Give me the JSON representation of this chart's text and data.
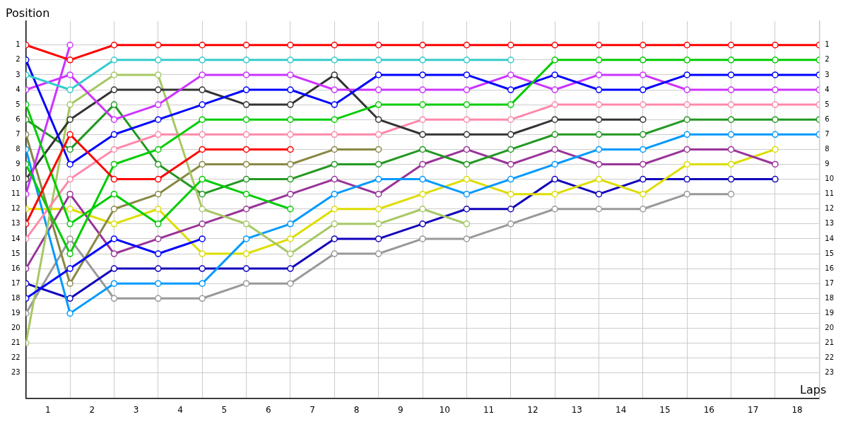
{
  "chart_data": {
    "type": "line",
    "xlabel": "Laps",
    "ylabel": "Position",
    "x": [
      0,
      1,
      2,
      3,
      4,
      5,
      6,
      7,
      8,
      9,
      10,
      11,
      12,
      13,
      14,
      15,
      16,
      17,
      18
    ],
    "xlim": [
      0,
      18
    ],
    "xticks": [
      {
        "value": 0,
        "label": null
      },
      {
        "value": 0.5,
        "label": "1"
      },
      {
        "value": 1,
        "label": null
      },
      {
        "value": 1.5,
        "label": "2"
      },
      {
        "value": 2,
        "label": null
      },
      {
        "value": 2.5,
        "label": "3"
      },
      {
        "value": 3,
        "label": null
      },
      {
        "value": 3.5,
        "label": "4"
      },
      {
        "value": 4,
        "label": null
      },
      {
        "value": 4.5,
        "label": "5"
      },
      {
        "value": 5,
        "label": null
      },
      {
        "value": 5.5,
        "label": "6"
      },
      {
        "value": 6,
        "label": null
      },
      {
        "value": 6.5,
        "label": "7"
      },
      {
        "value": 7,
        "label": null
      },
      {
        "value": 7.5,
        "label": "8"
      },
      {
        "value": 8,
        "label": null
      },
      {
        "value": 8.5,
        "label": "9"
      },
      {
        "value": 9,
        "label": null
      },
      {
        "value": 9.5,
        "label": "10"
      },
      {
        "value": 10,
        "label": null
      },
      {
        "value": 10.5,
        "label": "11"
      },
      {
        "value": 11,
        "label": null
      },
      {
        "value": 11.5,
        "label": "12"
      },
      {
        "value": 12,
        "label": null
      },
      {
        "value": 12.5,
        "label": "13"
      },
      {
        "value": 13,
        "label": null
      },
      {
        "value": 13.5,
        "label": "14"
      },
      {
        "value": 14,
        "label": null
      },
      {
        "value": 14.5,
        "label": "15"
      },
      {
        "value": 15,
        "label": null
      },
      {
        "value": 15.5,
        "label": "16"
      },
      {
        "value": 16,
        "label": null
      },
      {
        "value": 16.5,
        "label": "17"
      },
      {
        "value": 17,
        "label": null
      },
      {
        "value": 17.5,
        "label": "18"
      },
      {
        "value": 18,
        "label": null
      }
    ],
    "ylim": [
      24.7,
      -0.6
    ],
    "yticks": [
      1,
      2,
      3,
      4,
      5,
      6,
      7,
      8,
      9,
      10,
      11,
      12,
      13,
      14,
      15,
      16,
      17,
      18,
      19,
      20,
      21,
      22,
      23
    ],
    "y2lim": [
      24.7,
      -0.6
    ],
    "y2ticks": [
      1,
      2,
      3,
      4,
      5,
      6,
      7,
      8,
      9,
      10,
      11,
      12,
      13,
      14,
      15,
      16,
      17,
      18,
      19,
      20,
      21,
      22,
      23
    ],
    "grid": true,
    "legend": false,
    "marker": "circle",
    "line_style": "solid",
    "series": [
      {
        "color": "#ff0000",
        "values": [
          1,
          2,
          1,
          1,
          1,
          1,
          1,
          1,
          1,
          1,
          1,
          1,
          1,
          1,
          1,
          1,
          1,
          1,
          1
        ]
      },
      {
        "color": "#ff0000",
        "values": [
          13,
          7,
          10,
          10,
          8,
          8,
          8,
          null,
          null,
          null,
          null,
          null,
          null,
          null,
          null,
          null,
          null,
          null,
          null
        ]
      },
      {
        "color": "#33cccc",
        "values": [
          3,
          4,
          2,
          2,
          2,
          2,
          2,
          2,
          2,
          2,
          2,
          2,
          null,
          null,
          null,
          null,
          null,
          null,
          null
        ]
      },
      {
        "color": "#00cc00",
        "values": [
          5,
          13,
          11,
          13,
          10,
          11,
          12,
          null,
          null,
          null,
          null,
          null,
          null,
          null,
          null,
          null,
          null,
          null,
          null
        ]
      },
      {
        "color": "#00cc00",
        "values": [
          9,
          15,
          9,
          8,
          6,
          6,
          6,
          6,
          5,
          5,
          5,
          5,
          2,
          2,
          2,
          2,
          2,
          2,
          2
        ]
      },
      {
        "color": "#0000ff",
        "values": [
          2,
          9,
          7,
          6,
          5,
          4,
          4,
          5,
          3,
          3,
          3,
          4,
          3,
          4,
          4,
          3,
          3,
          3,
          3
        ]
      },
      {
        "color": "#0000ff",
        "values": [
          18,
          16,
          14,
          15,
          14,
          null,
          null,
          null,
          null,
          null,
          null,
          null,
          null,
          null,
          null,
          null,
          null,
          null,
          null
        ]
      },
      {
        "color": "#cc33ff",
        "values": [
          4,
          3,
          6,
          5,
          3,
          3,
          3,
          4,
          4,
          4,
          4,
          3,
          4,
          3,
          3,
          4,
          4,
          4,
          4
        ]
      },
      {
        "color": "#cc33ff",
        "values": [
          11,
          1,
          null,
          null,
          null,
          null,
          null,
          null,
          null,
          null,
          null,
          null,
          null,
          null,
          null,
          null,
          null,
          null,
          null
        ]
      },
      {
        "color": "#333333",
        "values": [
          10,
          6,
          4,
          4,
          4,
          5,
          5,
          3,
          6,
          7,
          7,
          7,
          6,
          6,
          6,
          null,
          null,
          null,
          null
        ]
      },
      {
        "color": "#ff88aa",
        "values": [
          14,
          10,
          8,
          7,
          7,
          7,
          7,
          7,
          7,
          6,
          6,
          6,
          5,
          5,
          5,
          5,
          5,
          5,
          5
        ]
      },
      {
        "color": "#a6c864",
        "values": [
          21,
          5,
          3,
          3,
          12,
          13,
          15,
          13,
          13,
          12,
          13,
          null,
          null,
          null,
          null,
          null,
          null,
          null,
          null
        ]
      },
      {
        "color": "#888844",
        "values": [
          7,
          17,
          12,
          11,
          9,
          9,
          9,
          8,
          8,
          null,
          null,
          null,
          null,
          null,
          null,
          null,
          null,
          null,
          null
        ]
      },
      {
        "color": "#229922",
        "values": [
          6,
          8,
          5,
          9,
          11,
          10,
          10,
          9,
          9,
          8,
          9,
          8,
          7,
          7,
          7,
          6,
          6,
          6,
          6
        ]
      },
      {
        "color": "#0099ff",
        "values": [
          8,
          19,
          17,
          17,
          17,
          14,
          13,
          11,
          10,
          10,
          11,
          10,
          9,
          8,
          8,
          7,
          7,
          7,
          7
        ]
      },
      {
        "color": "#993399",
        "values": [
          16,
          11,
          15,
          14,
          13,
          12,
          11,
          10,
          11,
          9,
          8,
          9,
          8,
          9,
          9,
          8,
          8,
          9,
          null
        ]
      },
      {
        "color": "#dddd00",
        "values": [
          12,
          12,
          13,
          12,
          15,
          15,
          14,
          12,
          12,
          11,
          10,
          11,
          11,
          10,
          11,
          9,
          9,
          8,
          null
        ]
      },
      {
        "color": "#1100bb",
        "values": [
          17,
          18,
          16,
          16,
          16,
          16,
          16,
          14,
          14,
          13,
          12,
          12,
          10,
          11,
          10,
          10,
          10,
          10,
          null
        ]
      },
      {
        "color": "#999999",
        "values": [
          19,
          14,
          18,
          18,
          18,
          17,
          17,
          15,
          15,
          14,
          14,
          13,
          12,
          12,
          12,
          11,
          11,
          null,
          null
        ]
      }
    ]
  }
}
